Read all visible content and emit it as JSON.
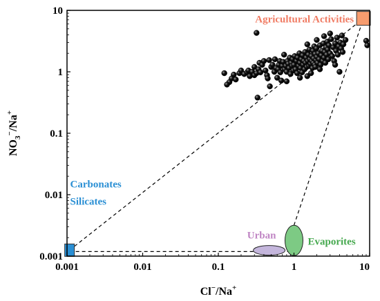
{
  "chart_data": {
    "type": "scatter",
    "x_scale": "log",
    "y_scale": "log",
    "xlim": [
      0.001,
      10
    ],
    "ylim": [
      0.001,
      10
    ],
    "x_ticks": [
      "0.001",
      "0.01",
      "0.1",
      "1",
      "10"
    ],
    "y_ticks": [
      "0.001",
      "0.01",
      "0.1",
      "1",
      "10"
    ],
    "xlabel": {
      "base": "Cl",
      "sup1": "−",
      "mid": "/Na",
      "sup2": "+"
    },
    "ylabel": {
      "base": "NO",
      "sub": "3",
      "sup1": "−",
      "mid": "/Na",
      "sup2": "+"
    },
    "grid": false,
    "marker_color": "#111111",
    "regions": [
      {
        "name": "Agricultural Activities",
        "shape": "square",
        "x": 8.3,
        "y": 7.4,
        "fill": "#f79c6e",
        "label_color": "#f07c64"
      },
      {
        "name": "Carbonates",
        "shape": "label",
        "x": 0.0011,
        "y": 0.015,
        "label_color": "#2a8fd4"
      },
      {
        "name": "Silicates",
        "shape": "square",
        "x": 0.00108,
        "y": 0.00125,
        "fill": "#2a8fd4",
        "label_color": "#2a8fd4"
      },
      {
        "name": "Urban",
        "shape": "ellipse",
        "x": 0.47,
        "y": 0.00115,
        "fill": "#c4b6dc",
        "label_color": "#c086c4"
      },
      {
        "name": "Evaporites",
        "shape": "ellipse",
        "x": 1.0,
        "y": 0.0018,
        "fill": "#7dca84",
        "label_color": "#45a84e"
      }
    ],
    "points": [
      [
        0.32,
        4.3
      ],
      [
        0.12,
        0.95
      ],
      [
        0.14,
        0.68
      ],
      [
        0.13,
        0.62
      ],
      [
        0.15,
        0.78
      ],
      [
        0.16,
        0.9
      ],
      [
        0.17,
        0.75
      ],
      [
        0.19,
        0.95
      ],
      [
        0.2,
        1.05
      ],
      [
        0.22,
        0.92
      ],
      [
        0.24,
        0.98
      ],
      [
        0.25,
        1.05
      ],
      [
        0.26,
        0.85
      ],
      [
        0.28,
        1.0
      ],
      [
        0.3,
        1.2
      ],
      [
        0.3,
        0.88
      ],
      [
        0.32,
        0.95
      ],
      [
        0.33,
        0.38
      ],
      [
        0.34,
        1.1
      ],
      [
        0.35,
        1.4
      ],
      [
        0.36,
        0.98
      ],
      [
        0.38,
        1.3
      ],
      [
        0.4,
        1.5
      ],
      [
        0.42,
        1.05
      ],
      [
        0.44,
        0.88
      ],
      [
        0.45,
        0.78
      ],
      [
        0.47,
        1.55
      ],
      [
        0.48,
        0.58
      ],
      [
        0.5,
        1.2
      ],
      [
        0.52,
        1.3
      ],
      [
        0.55,
        1.0
      ],
      [
        0.56,
        1.6
      ],
      [
        0.58,
        1.15
      ],
      [
        0.6,
        0.8
      ],
      [
        0.62,
        1.1
      ],
      [
        0.63,
        1.3
      ],
      [
        0.65,
        1.5
      ],
      [
        0.66,
        0.98
      ],
      [
        0.68,
        0.72
      ],
      [
        0.7,
        1.25
      ],
      [
        0.72,
        1.45
      ],
      [
        0.74,
        1.9
      ],
      [
        0.75,
        1.1
      ],
      [
        0.78,
        1.25
      ],
      [
        0.8,
        1.0
      ],
      [
        0.82,
        1.5
      ],
      [
        0.84,
        1.35
      ],
      [
        0.86,
        1.15
      ],
      [
        0.88,
        1.7
      ],
      [
        0.9,
        0.92
      ],
      [
        0.92,
        1.4
      ],
      [
        0.94,
        1.25
      ],
      [
        0.96,
        1.6
      ],
      [
        0.98,
        1.05
      ],
      [
        1.0,
        1.3
      ],
      [
        1.02,
        1.8
      ],
      [
        1.05,
        1.1
      ],
      [
        1.08,
        1.5
      ],
      [
        1.1,
        0.95
      ],
      [
        1.12,
        1.7
      ],
      [
        1.15,
        1.25
      ],
      [
        1.18,
        2.0
      ],
      [
        1.2,
        1.4
      ],
      [
        1.22,
        1.15
      ],
      [
        1.25,
        1.6
      ],
      [
        1.28,
        0.98
      ],
      [
        1.3,
        1.85
      ],
      [
        1.32,
        1.3
      ],
      [
        1.35,
        1.5
      ],
      [
        1.38,
        1.1
      ],
      [
        1.4,
        2.1
      ],
      [
        1.42,
        1.4
      ],
      [
        1.45,
        1.7
      ],
      [
        1.48,
        1.2
      ],
      [
        1.5,
        0.85
      ],
      [
        1.52,
        1.5
      ],
      [
        1.55,
        1.9
      ],
      [
        1.58,
        1.25
      ],
      [
        1.6,
        2.3
      ],
      [
        1.62,
        1.6
      ],
      [
        1.65,
        1.35
      ],
      [
        1.68,
        0.95
      ],
      [
        1.7,
        1.8
      ],
      [
        1.72,
        1.5
      ],
      [
        1.75,
        1.15
      ],
      [
        1.78,
        2.2
      ],
      [
        1.8,
        1.4
      ],
      [
        1.82,
        1.65
      ],
      [
        1.85,
        2.6
      ],
      [
        1.88,
        1.3
      ],
      [
        1.9,
        1.95
      ],
      [
        1.92,
        1.2
      ],
      [
        1.95,
        1.55
      ],
      [
        1.98,
        2.4
      ],
      [
        2.0,
        1.75
      ],
      [
        2.05,
        1.4
      ],
      [
        2.1,
        2.0
      ],
      [
        2.15,
        1.6
      ],
      [
        2.2,
        2.7
      ],
      [
        2.25,
        1.3
      ],
      [
        2.3,
        1.85
      ],
      [
        2.35,
        2.2
      ],
      [
        2.4,
        1.5
      ],
      [
        2.45,
        2.9
      ],
      [
        2.5,
        1.7
      ],
      [
        2.55,
        2.1
      ],
      [
        2.6,
        1.4
      ],
      [
        2.65,
        2.5
      ],
      [
        2.7,
        1.9
      ],
      [
        2.75,
        3.1
      ],
      [
        2.8,
        2.3
      ],
      [
        2.85,
        1.6
      ],
      [
        2.9,
        2.7
      ],
      [
        3.0,
        2.0
      ],
      [
        3.1,
        3.4
      ],
      [
        3.2,
        1.8
      ],
      [
        3.3,
        2.5
      ],
      [
        3.4,
        1.5
      ],
      [
        3.5,
        2.9
      ],
      [
        3.6,
        2.2
      ],
      [
        3.7,
        3.6
      ],
      [
        3.8,
        1.9
      ],
      [
        3.9,
        2.6
      ],
      [
        4.0,
        1.0
      ],
      [
        4.1,
        3.0
      ],
      [
        4.2,
        2.4
      ],
      [
        4.3,
        3.9
      ],
      [
        4.4,
        2.1
      ],
      [
        4.5,
        2.8
      ],
      [
        2.0,
        3.3
      ],
      [
        1.5,
        2.8
      ],
      [
        3.0,
        4.2
      ],
      [
        2.5,
        3.8
      ],
      [
        4.8,
        3.3
      ],
      [
        9.0,
        3.2
      ],
      [
        9.3,
        2.7
      ],
      [
        0.8,
        0.7
      ],
      [
        1.2,
        0.8
      ],
      [
        2.2,
        1.1
      ],
      [
        3.5,
        1.3
      ]
    ]
  }
}
